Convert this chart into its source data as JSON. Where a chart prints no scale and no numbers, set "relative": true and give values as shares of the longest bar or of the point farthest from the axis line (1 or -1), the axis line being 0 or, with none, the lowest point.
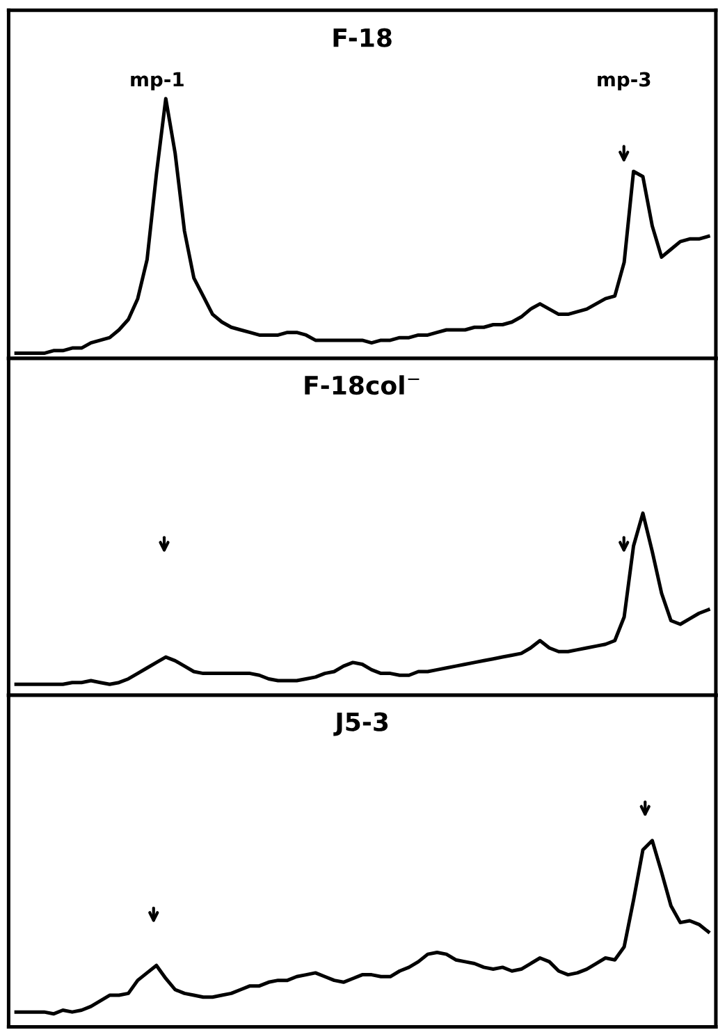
{
  "chart_data": [
    {
      "type": "line",
      "title": "F-18",
      "relative": true,
      "annotations": [
        "mp-1",
        "mp-3"
      ],
      "categories": [
        null,
        null,
        null,
        null,
        null,
        null,
        null,
        null,
        null,
        null,
        null,
        null,
        null,
        null,
        null,
        null,
        null,
        null,
        null,
        null,
        null,
        null,
        null,
        null,
        null,
        null,
        null,
        null,
        null,
        null,
        null,
        null,
        null,
        null,
        null,
        null,
        null,
        null,
        null,
        null,
        null,
        null,
        null,
        null,
        null,
        null,
        null,
        null,
        null,
        null,
        null,
        null,
        null,
        null,
        null,
        null,
        null,
        null,
        null,
        null,
        null,
        null,
        null,
        null,
        null,
        null,
        null,
        null,
        null,
        null,
        null,
        null,
        null,
        null,
        null
      ],
      "series": [
        {
          "color": "#000000",
          "values": [
            0.02,
            0.02,
            0.02,
            0.02,
            0.03,
            0.03,
            0.04,
            0.04,
            0.06,
            0.07,
            0.08,
            0.11,
            0.15,
            0.23,
            0.38,
            0.71,
            1.0,
            0.79,
            0.49,
            0.31,
            0.24,
            0.17,
            0.14,
            0.12,
            0.11,
            0.1,
            0.09,
            0.09,
            0.09,
            0.1,
            0.1,
            0.09,
            0.07,
            0.07,
            0.07,
            0.07,
            0.07,
            0.07,
            0.06,
            0.07,
            0.07,
            0.08,
            0.08,
            0.09,
            0.09,
            0.1,
            0.11,
            0.11,
            0.11,
            0.12,
            0.12,
            0.13,
            0.13,
            0.14,
            0.16,
            0.19,
            0.21,
            0.19,
            0.17,
            0.17,
            0.18,
            0.19,
            0.21,
            0.23,
            0.24,
            0.37,
            0.72,
            0.7,
            0.51,
            0.39,
            0.42,
            0.45,
            0.46,
            0.46,
            0.47
          ]
        }
      ]
    },
    {
      "type": "line",
      "title": "F-18col$^{−}$",
      "relative": true,
      "categories": [
        null,
        null,
        null,
        null,
        null,
        null,
        null,
        null,
        null,
        null,
        null,
        null,
        null,
        null,
        null,
        null,
        null,
        null,
        null,
        null,
        null,
        null,
        null,
        null,
        null,
        null,
        null,
        null,
        null,
        null,
        null,
        null,
        null,
        null,
        null,
        null,
        null,
        null,
        null,
        null,
        null,
        null,
        null,
        null,
        null,
        null,
        null,
        null,
        null,
        null,
        null,
        null,
        null,
        null,
        null,
        null,
        null,
        null,
        null,
        null,
        null,
        null,
        null,
        null,
        null,
        null,
        null,
        null,
        null,
        null,
        null,
        null,
        null,
        null,
        null
      ],
      "series": [
        {
          "color": "#000000",
          "values": [
            0.06,
            0.06,
            0.06,
            0.06,
            0.06,
            0.06,
            0.07,
            0.07,
            0.08,
            0.07,
            0.06,
            0.07,
            0.09,
            0.12,
            0.15,
            0.18,
            0.21,
            0.19,
            0.16,
            0.13,
            0.12,
            0.12,
            0.12,
            0.12,
            0.12,
            0.12,
            0.11,
            0.09,
            0.08,
            0.08,
            0.08,
            0.09,
            0.1,
            0.12,
            0.13,
            0.16,
            0.18,
            0.17,
            0.14,
            0.12,
            0.12,
            0.11,
            0.11,
            0.13,
            0.13,
            0.14,
            0.15,
            0.16,
            0.17,
            0.18,
            0.19,
            0.2,
            0.21,
            0.22,
            0.23,
            0.26,
            0.3,
            0.26,
            0.24,
            0.24,
            0.25,
            0.26,
            0.27,
            0.28,
            0.3,
            0.43,
            0.82,
            1.0,
            0.79,
            0.56,
            0.41,
            0.39,
            0.42,
            0.45,
            0.47
          ]
        }
      ]
    },
    {
      "type": "line",
      "title": "J5-3",
      "relative": true,
      "categories": [
        null,
        null,
        null,
        null,
        null,
        null,
        null,
        null,
        null,
        null,
        null,
        null,
        null,
        null,
        null,
        null,
        null,
        null,
        null,
        null,
        null,
        null,
        null,
        null,
        null,
        null,
        null,
        null,
        null,
        null,
        null,
        null,
        null,
        null,
        null,
        null,
        null,
        null,
        null,
        null,
        null,
        null,
        null,
        null,
        null,
        null,
        null,
        null,
        null,
        null,
        null,
        null,
        null,
        null,
        null,
        null,
        null,
        null,
        null,
        null,
        null,
        null,
        null,
        null,
        null,
        null,
        null,
        null,
        null,
        null,
        null,
        null,
        null,
        null,
        null
      ],
      "series": [
        {
          "color": "#000000",
          "values": [
            0.08,
            0.08,
            0.08,
            0.08,
            0.07,
            0.09,
            0.08,
            0.09,
            0.11,
            0.14,
            0.17,
            0.17,
            0.18,
            0.25,
            0.29,
            0.33,
            0.26,
            0.2,
            0.18,
            0.17,
            0.16,
            0.16,
            0.17,
            0.18,
            0.2,
            0.22,
            0.22,
            0.24,
            0.25,
            0.25,
            0.27,
            0.28,
            0.29,
            0.27,
            0.25,
            0.24,
            0.26,
            0.28,
            0.28,
            0.27,
            0.27,
            0.3,
            0.32,
            0.35,
            0.39,
            0.4,
            0.39,
            0.36,
            0.35,
            0.34,
            0.32,
            0.31,
            0.32,
            0.3,
            0.31,
            0.34,
            0.37,
            0.35,
            0.3,
            0.28,
            0.29,
            0.31,
            0.34,
            0.37,
            0.36,
            0.43,
            0.68,
            0.95,
            1.0,
            0.83,
            0.65,
            0.56,
            0.57,
            0.55,
            0.51
          ]
        }
      ]
    }
  ]
}
